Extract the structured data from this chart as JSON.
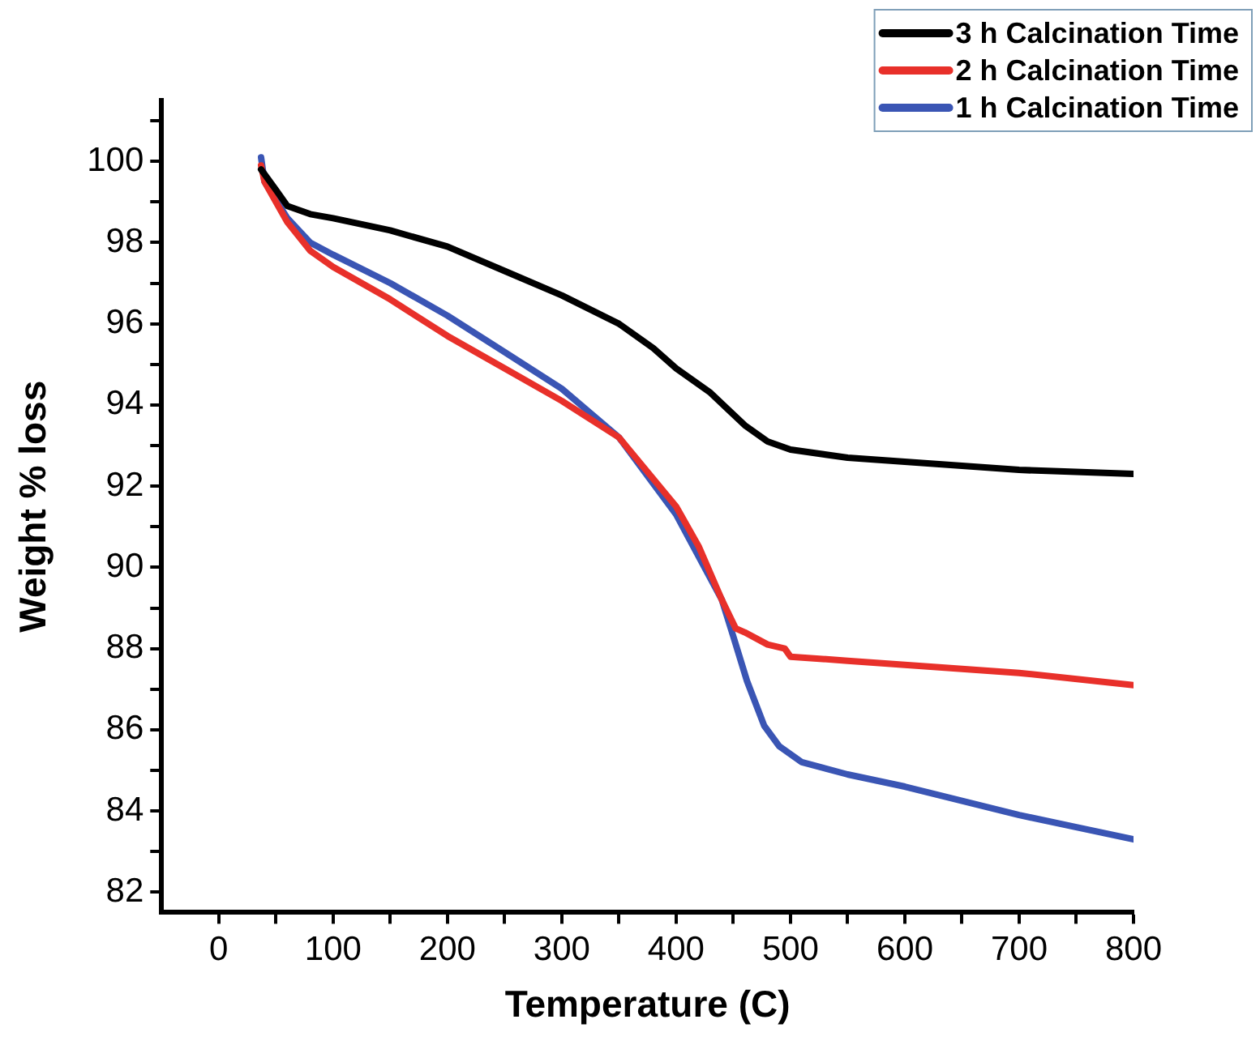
{
  "chart_data": {
    "type": "line",
    "xlabel": "Temperature (C)",
    "ylabel": "Weight % loss",
    "xlim": [
      -50,
      800
    ],
    "xticks": [
      0,
      {
        "value": 50,
        "label": null
      },
      100,
      {
        "value": 150,
        "label": null
      },
      200,
      {
        "value": 250,
        "label": null
      },
      300,
      {
        "value": 350,
        "label": null
      },
      400,
      {
        "value": 450,
        "label": null
      },
      500,
      {
        "value": 550,
        "label": null
      },
      600,
      {
        "value": 650,
        "label": null
      },
      700,
      {
        "value": 750,
        "label": null
      },
      800
    ],
    "ylim": [
      81.5,
      101.5
    ],
    "yticks": [
      82,
      {
        "value": 83,
        "label": null
      },
      84,
      {
        "value": 85,
        "label": null
      },
      86,
      {
        "value": 87,
        "label": null
      },
      88,
      {
        "value": 89,
        "label": null
      },
      90,
      {
        "value": 91,
        "label": null
      },
      92,
      {
        "value": 93,
        "label": null
      },
      94,
      {
        "value": 95,
        "label": null
      },
      96,
      {
        "value": 97,
        "label": null
      },
      98,
      {
        "value": 99,
        "label": null
      },
      100,
      {
        "value": 101,
        "label": null
      }
    ],
    "grid": false,
    "legend": "top right",
    "marker": "none",
    "line_style": "solid",
    "series": [
      {
        "name": "3 h Calcination Time",
        "color": "#000000",
        "x": [
          37,
          50,
          60,
          80,
          100,
          150,
          200,
          250,
          300,
          350,
          380,
          400,
          430,
          460,
          480,
          500,
          550,
          600,
          700,
          800
        ],
        "values": [
          99.8,
          99.3,
          98.9,
          98.7,
          98.6,
          98.3,
          97.9,
          97.3,
          96.7,
          96.0,
          95.4,
          94.9,
          94.3,
          93.5,
          93.1,
          92.9,
          92.7,
          92.6,
          92.4,
          92.3
        ]
      },
      {
        "name": "2 h Calcination Time",
        "color": "#e8302a",
        "x": [
          37,
          40,
          60,
          80,
          100,
          150,
          200,
          250,
          300,
          350,
          400,
          420,
          440,
          452,
          460,
          480,
          495,
          500,
          550,
          600,
          700,
          800
        ],
        "values": [
          99.9,
          99.5,
          98.5,
          97.8,
          97.4,
          96.6,
          95.7,
          94.9,
          94.1,
          93.2,
          91.5,
          90.5,
          89.2,
          88.5,
          88.4,
          88.1,
          88.0,
          87.8,
          87.7,
          87.6,
          87.4,
          87.1
        ]
      },
      {
        "name": "1 h Calcination Time",
        "color": "#3a55b4",
        "x": [
          37,
          40,
          60,
          80,
          100,
          150,
          200,
          250,
          300,
          350,
          400,
          440,
          450,
          462,
          477,
          490,
          510,
          550,
          600,
          700,
          800
        ],
        "values": [
          100.1,
          99.5,
          98.6,
          98.0,
          97.7,
          97.0,
          96.2,
          95.3,
          94.4,
          93.2,
          91.3,
          89.2,
          88.3,
          87.2,
          86.1,
          85.6,
          85.2,
          84.9,
          84.6,
          83.9,
          83.3
        ]
      }
    ]
  }
}
